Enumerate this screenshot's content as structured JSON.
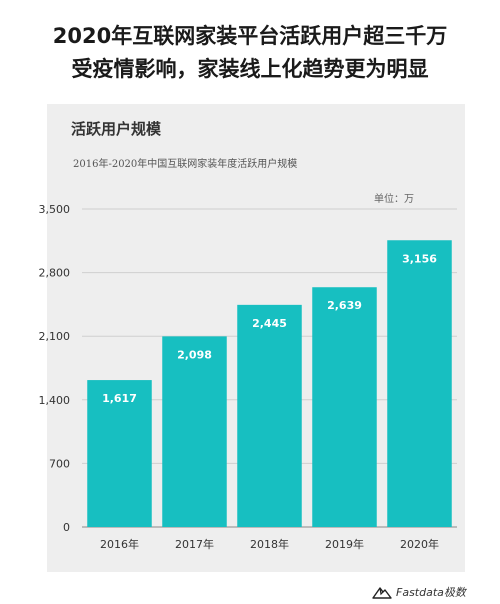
{
  "headline": {
    "line1": "2020年互联网家装平台活跃用户超三千万",
    "line2": "受疫情影响，家装线上化趋势更为明显"
  },
  "chart_header": {
    "title": "活跃用户规模",
    "subtitle": "2016年-2020年中国互联网家装年度活跃用户规模",
    "unit": "单位：万"
  },
  "brand": {
    "name": "Fastdata极数",
    "logo_icon": "mountain-logo-icon"
  },
  "colors": {
    "bar": "#17bfc1",
    "panel": "#eeeeee",
    "grid": "#cfcfcf",
    "axis": "#888888"
  },
  "chart_data": {
    "type": "bar",
    "categories": [
      "2016年",
      "2017年",
      "2018年",
      "2019年",
      "2020年"
    ],
    "values": [
      1617,
      2098,
      2445,
      2639,
      3156
    ],
    "value_labels": [
      "1,617",
      "2,098",
      "2,445",
      "2,639",
      "3,156"
    ],
    "title": "活跃用户规模",
    "subtitle": "2016年-2020年中国互联网家装年度活跃用户规模",
    "xlabel": "",
    "ylabel": "",
    "ylim": [
      0,
      3500
    ],
    "yticks": [
      0,
      700,
      1400,
      2100,
      2800,
      3500
    ],
    "ytick_labels": [
      "0",
      "700",
      "1,400",
      "2,100",
      "2,800",
      "3,500"
    ],
    "grid": true,
    "legend": "none"
  }
}
